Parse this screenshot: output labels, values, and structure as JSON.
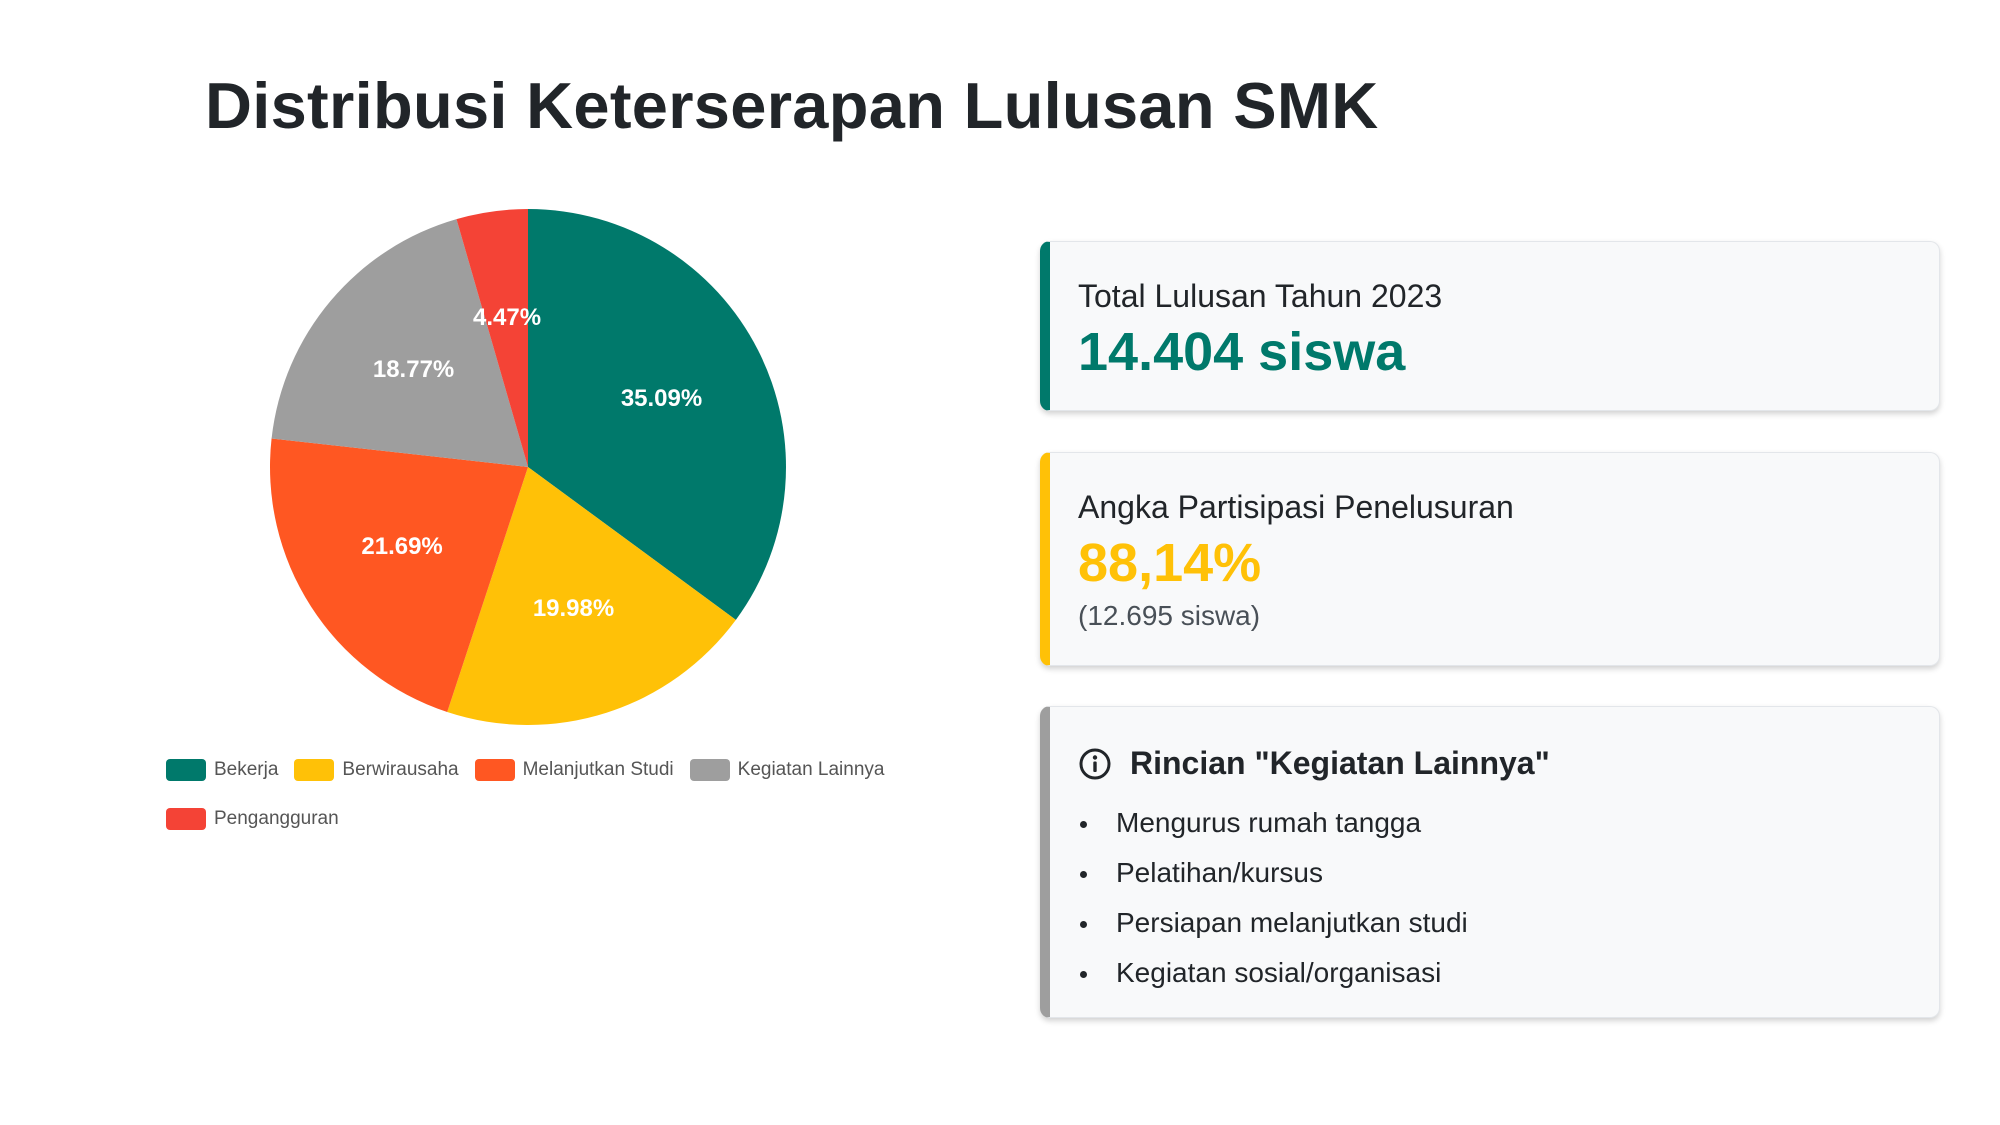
{
  "title": "Distribusi Keterserapan Lulusan SMK",
  "chart_data": {
    "type": "pie",
    "categories": [
      "Bekerja",
      "Berwirausaha",
      "Melanjutkan Studi",
      "Kegiatan Lainnya",
      "Pengangguran"
    ],
    "values": [
      35.09,
      19.98,
      21.69,
      18.77,
      4.47
    ],
    "labels": [
      "35.09%",
      "19.98%",
      "21.69%",
      "18.77%",
      "4.47%"
    ],
    "colors": [
      "#00796b",
      "#ffc107",
      "#ff5722",
      "#9e9e9e",
      "#f44336"
    ],
    "legend_position": "bottom"
  },
  "cards": {
    "total": {
      "label": "Total Lulusan Tahun 2023",
      "value": "14.404 siswa",
      "accent": "#00796b"
    },
    "participation": {
      "label": "Angka Partisipasi Penelusuran",
      "value": "88,14%",
      "sub": "(12.695 siswa)",
      "accent": "#ffc107"
    },
    "detail": {
      "icon": "info-icon",
      "title": "Rincian \"Kegiatan Lainnya\"",
      "items": [
        "Mengurus rumah tangga",
        "Pelatihan/kursus",
        "Persiapan melanjutkan studi",
        "Kegiatan sosial/organisasi"
      ],
      "accent": "#9e9e9e"
    }
  }
}
